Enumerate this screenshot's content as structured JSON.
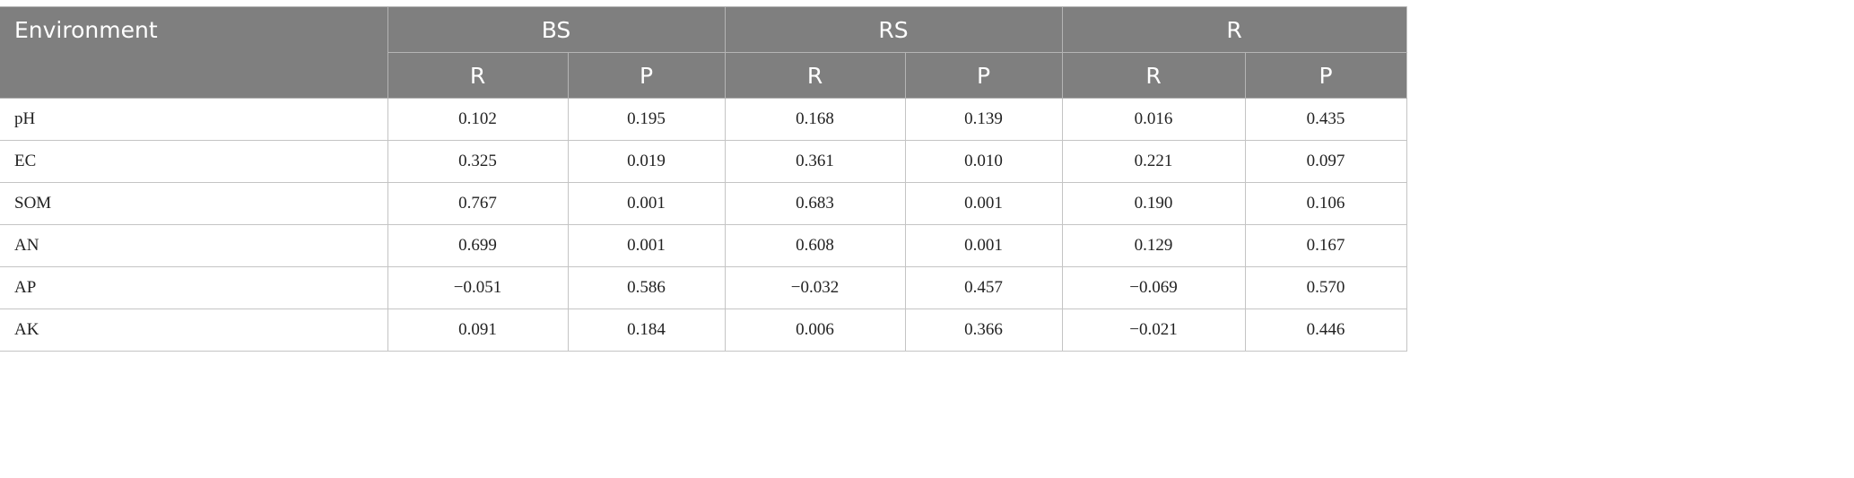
{
  "table": {
    "header": {
      "first_col": "Environment",
      "groups": [
        "BS",
        "RS",
        "R"
      ],
      "sub": [
        "R",
        "P",
        "R",
        "P",
        "R",
        "P"
      ]
    },
    "rows": [
      {
        "label": "pH",
        "values": [
          "0.102",
          "0.195",
          "0.168",
          "0.139",
          "0.016",
          "0.435"
        ]
      },
      {
        "label": "EC",
        "values": [
          "0.325",
          "0.019",
          "0.361",
          "0.010",
          "0.221",
          "0.097"
        ]
      },
      {
        "label": "SOM",
        "values": [
          "0.767",
          "0.001",
          "0.683",
          "0.001",
          "0.190",
          "0.106"
        ]
      },
      {
        "label": "AN",
        "values": [
          "0.699",
          "0.001",
          "0.608",
          "0.001",
          "0.129",
          "0.167"
        ]
      },
      {
        "label": "AP",
        "values": [
          "−0.051",
          "0.586",
          "−0.032",
          "0.457",
          "−0.069",
          "0.570"
        ]
      },
      {
        "label": "AK",
        "values": [
          "0.091",
          "0.184",
          "0.006",
          "0.366",
          "−0.021",
          "0.446"
        ]
      }
    ]
  }
}
